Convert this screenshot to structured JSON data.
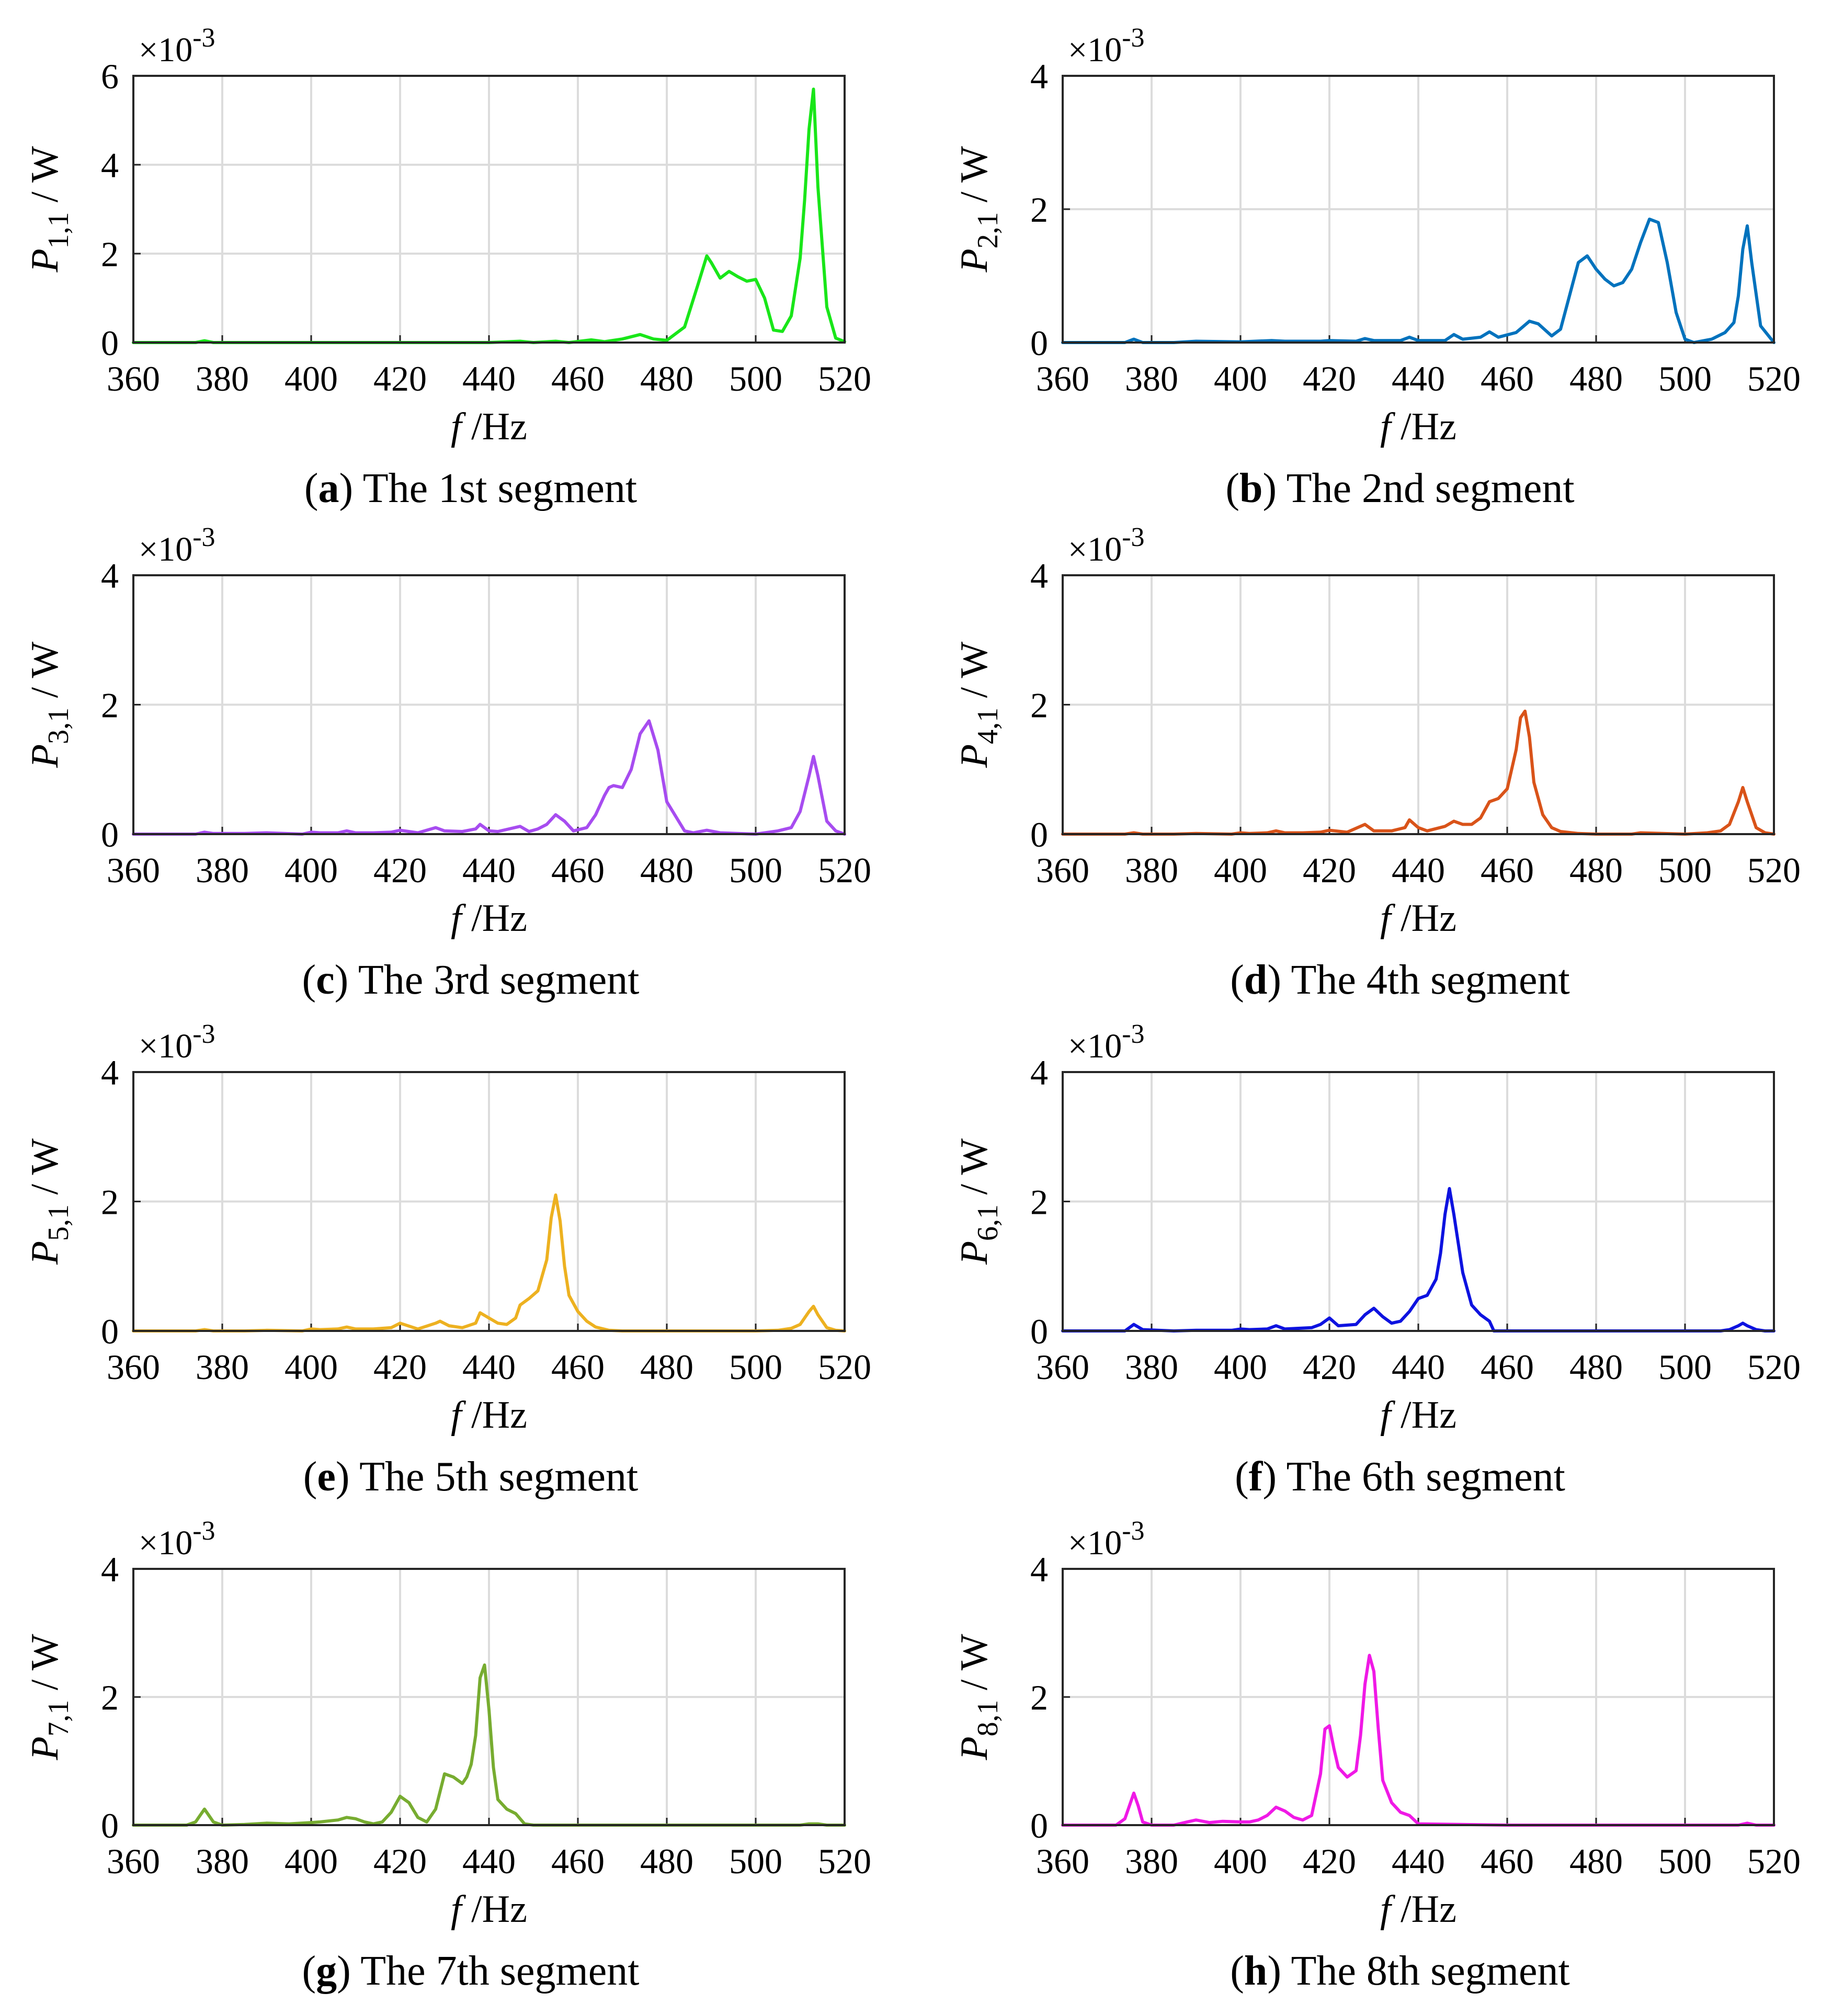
{
  "figure": {
    "common": {
      "xlabel_var": "f",
      "xlabel_unit": " /Hz",
      "ylabel_var": "P",
      "ylabel_unit": " / W",
      "multiplier_base": "×10",
      "multiplier_exp": "-3",
      "x_ticks": [
        "360",
        "380",
        "400",
        "420",
        "440",
        "460",
        "480",
        "500",
        "520"
      ]
    }
  },
  "chart_data": [
    {
      "type": "line",
      "letter": "a",
      "caption": " The 1st segment",
      "ysub": "1,1",
      "color": "#19e619",
      "xlim": [
        360,
        520
      ],
      "ylim": [
        0,
        6
      ],
      "y_ticks": [
        "0",
        "2",
        "4",
        "6"
      ],
      "series": [
        {
          "name": "P1,1",
          "x": [
            360,
            374,
            376,
            378,
            390,
            400,
            420,
            440,
            447,
            450,
            455,
            458,
            463,
            466,
            470,
            474,
            477,
            480,
            484,
            487,
            489,
            490,
            492,
            494,
            496,
            498,
            500,
            502,
            504,
            506,
            508,
            510,
            511,
            512,
            513,
            514,
            516,
            518,
            520
          ],
          "y": [
            0,
            0,
            0.04,
            0,
            0,
            0,
            0,
            0,
            0.03,
            0,
            0.03,
            0,
            0.06,
            0.02,
            0.08,
            0.18,
            0.08,
            0.05,
            0.35,
            1.3,
            1.95,
            1.8,
            1.45,
            1.6,
            1.48,
            1.38,
            1.42,
            1.0,
            0.28,
            0.25,
            0.6,
            1.9,
            3.2,
            4.8,
            5.7,
            3.5,
            0.8,
            0.1,
            0.02
          ]
        }
      ]
    },
    {
      "type": "line",
      "letter": "b",
      "caption": " The 2nd segment",
      "ysub": "2,1",
      "color": "#0072bd",
      "xlim": [
        360,
        520
      ],
      "ylim": [
        0,
        4
      ],
      "y_ticks": [
        "0",
        "2",
        "4"
      ],
      "series": [
        {
          "name": "P2,1",
          "x": [
            360,
            374,
            376,
            378,
            385,
            390,
            400,
            407,
            410,
            418,
            420,
            426,
            428,
            430,
            436,
            438,
            440,
            446,
            448,
            450,
            454,
            456,
            458,
            462,
            465,
            467,
            470,
            472,
            474,
            476,
            478,
            480,
            482,
            484,
            486,
            488,
            490,
            492,
            494,
            496,
            498,
            500,
            502,
            506,
            509,
            511,
            512,
            513,
            514,
            515,
            517,
            520
          ],
          "y": [
            0,
            0,
            0.05,
            0,
            0,
            0.02,
            0.01,
            0.03,
            0.02,
            0.02,
            0.03,
            0.02,
            0.06,
            0.03,
            0.03,
            0.08,
            0.03,
            0.03,
            0.12,
            0.05,
            0.08,
            0.16,
            0.08,
            0.15,
            0.32,
            0.28,
            0.1,
            0.2,
            0.7,
            1.2,
            1.3,
            1.1,
            0.95,
            0.85,
            0.9,
            1.1,
            1.5,
            1.85,
            1.8,
            1.2,
            0.45,
            0.05,
            0,
            0.05,
            0.15,
            0.3,
            0.7,
            1.4,
            1.75,
            1.2,
            0.25,
            0
          ]
        }
      ]
    },
    {
      "type": "line",
      "letter": "c",
      "caption": " The 3rd segment",
      "ysub": "3,1",
      "color": "#a74cf0",
      "xlim": [
        360,
        520
      ],
      "ylim": [
        0,
        4
      ],
      "y_ticks": [
        "0",
        "2",
        "4"
      ],
      "series": [
        {
          "name": "P3,1",
          "x": [
            360,
            374,
            376,
            378,
            385,
            390,
            398,
            400,
            402,
            406,
            408,
            410,
            414,
            418,
            420,
            424,
            428,
            430,
            434,
            437,
            438,
            440,
            442,
            447,
            449,
            451,
            453,
            455,
            457,
            459,
            462,
            464,
            466,
            467,
            468,
            470,
            472,
            474,
            476,
            478,
            480,
            484,
            486,
            489,
            492,
            500,
            505,
            508,
            510,
            512,
            513,
            514,
            516,
            518,
            520
          ],
          "y": [
            0,
            0,
            0.03,
            0.01,
            0.01,
            0.02,
            0,
            0.03,
            0.02,
            0.02,
            0.05,
            0.02,
            0.02,
            0.03,
            0.06,
            0.02,
            0.1,
            0.05,
            0.04,
            0.08,
            0.15,
            0.05,
            0.04,
            0.12,
            0.04,
            0.08,
            0.15,
            0.3,
            0.2,
            0.05,
            0.1,
            0.3,
            0.6,
            0.72,
            0.75,
            0.72,
            1.0,
            1.55,
            1.75,
            1.3,
            0.5,
            0.05,
            0.02,
            0.06,
            0.02,
            0,
            0.05,
            0.1,
            0.35,
            0.9,
            1.2,
            0.9,
            0.2,
            0.05,
            0
          ]
        }
      ]
    },
    {
      "type": "line",
      "letter": "d",
      "caption": " The 4th segment",
      "ysub": "4,1",
      "color": "#d95319",
      "xlim": [
        360,
        520
      ],
      "ylim": [
        0,
        4
      ],
      "y_ticks": [
        "0",
        "2",
        "4"
      ],
      "series": [
        {
          "name": "P4,1",
          "x": [
            360,
            374,
            376,
            378,
            385,
            390,
            398,
            400,
            402,
            406,
            408,
            410,
            414,
            418,
            420,
            424,
            428,
            430,
            434,
            437,
            438,
            440,
            442,
            446,
            448,
            450,
            452,
            454,
            456,
            458,
            460,
            462,
            463,
            464,
            465,
            466,
            468,
            470,
            472,
            476,
            480,
            488,
            490,
            500,
            505,
            508,
            510,
            512,
            513,
            514,
            516,
            518,
            520
          ],
          "y": [
            0,
            0,
            0.02,
            0,
            0,
            0.01,
            0,
            0.02,
            0.01,
            0.02,
            0.05,
            0.02,
            0.02,
            0.03,
            0.06,
            0.03,
            0.15,
            0.05,
            0.05,
            0.1,
            0.22,
            0.1,
            0.05,
            0.12,
            0.2,
            0.15,
            0.15,
            0.25,
            0.5,
            0.55,
            0.7,
            1.3,
            1.8,
            1.9,
            1.5,
            0.8,
            0.3,
            0.1,
            0.04,
            0.01,
            0,
            0,
            0.02,
            0,
            0.02,
            0.05,
            0.15,
            0.5,
            0.72,
            0.5,
            0.1,
            0.02,
            0
          ]
        }
      ]
    },
    {
      "type": "line",
      "letter": "e",
      "caption": " The 5th segment",
      "ysub": "5,1",
      "color": "#edb120",
      "xlim": [
        360,
        520
      ],
      "ylim": [
        0,
        4
      ],
      "y_ticks": [
        "0",
        "2",
        "4"
      ],
      "series": [
        {
          "name": "P5,1",
          "x": [
            360,
            374,
            376,
            378,
            385,
            390,
            398,
            400,
            402,
            406,
            408,
            410,
            414,
            418,
            420,
            424,
            428,
            429,
            431,
            434,
            437,
            438,
            440,
            442,
            444,
            446,
            447,
            449,
            451,
            453,
            454,
            455,
            456,
            457,
            458,
            460,
            462,
            464,
            467,
            470,
            480,
            490,
            500,
            505,
            508,
            510,
            512,
            513,
            514,
            516,
            518,
            520
          ],
          "y": [
            0,
            0,
            0.02,
            0,
            0,
            0.01,
            0,
            0.03,
            0.02,
            0.03,
            0.06,
            0.03,
            0.03,
            0.05,
            0.12,
            0.03,
            0.12,
            0.15,
            0.08,
            0.05,
            0.12,
            0.28,
            0.2,
            0.12,
            0.1,
            0.2,
            0.4,
            0.5,
            0.62,
            1.1,
            1.75,
            2.1,
            1.7,
            1.0,
            0.55,
            0.3,
            0.15,
            0.06,
            0.01,
            0,
            0,
            0,
            0,
            0.01,
            0.04,
            0.1,
            0.3,
            0.38,
            0.25,
            0.05,
            0.01,
            0
          ]
        }
      ]
    },
    {
      "type": "line",
      "letter": "f",
      "caption": " The 6th segment",
      "ysub": "6,1",
      "color": "#0d12e0",
      "xlim": [
        360,
        520
      ],
      "ylim": [
        0,
        4
      ],
      "y_ticks": [
        "0",
        "2",
        "4"
      ],
      "series": [
        {
          "name": "P6,1",
          "x": [
            360,
            374,
            376,
            378,
            385,
            390,
            398,
            400,
            402,
            406,
            408,
            410,
            416,
            418,
            420,
            422,
            426,
            428,
            430,
            432,
            434,
            436,
            438,
            440,
            442,
            444,
            445,
            446,
            447,
            448,
            450,
            452,
            454,
            456,
            457,
            460,
            480,
            500,
            508,
            510,
            512,
            513,
            514,
            516,
            518,
            520
          ],
          "y": [
            0,
            0,
            0.1,
            0.02,
            0,
            0.01,
            0.01,
            0.03,
            0.02,
            0.03,
            0.08,
            0.03,
            0.05,
            0.1,
            0.2,
            0.08,
            0.1,
            0.25,
            0.35,
            0.22,
            0.12,
            0.15,
            0.3,
            0.5,
            0.55,
            0.8,
            1.2,
            1.8,
            2.2,
            1.8,
            0.9,
            0.4,
            0.25,
            0.15,
            0,
            0,
            0,
            0,
            0,
            0.02,
            0.08,
            0.12,
            0.08,
            0.02,
            0,
            0
          ]
        }
      ]
    },
    {
      "type": "line",
      "letter": "g",
      "caption": " The 7th segment",
      "ysub": "7,1",
      "color": "#77ac30",
      "xlim": [
        360,
        520
      ],
      "ylim": [
        0,
        4
      ],
      "y_ticks": [
        "0",
        "2",
        "4"
      ],
      "series": [
        {
          "name": "P7,1",
          "x": [
            360,
            372,
            374,
            375,
            376,
            377,
            378,
            380,
            385,
            390,
            395,
            400,
            402,
            406,
            408,
            410,
            412,
            414,
            416,
            418,
            420,
            422,
            424,
            426,
            428,
            430,
            432,
            434,
            435,
            436,
            437,
            438,
            439,
            440,
            441,
            442,
            444,
            446,
            448,
            450,
            460,
            480,
            500,
            510,
            512,
            514,
            516,
            518,
            520
          ],
          "y": [
            0,
            0,
            0.05,
            0.15,
            0.25,
            0.15,
            0.05,
            0,
            0.01,
            0.03,
            0.02,
            0.04,
            0.05,
            0.08,
            0.12,
            0.1,
            0.05,
            0.02,
            0.05,
            0.2,
            0.45,
            0.35,
            0.12,
            0.05,
            0.25,
            0.8,
            0.75,
            0.65,
            0.75,
            0.95,
            1.4,
            2.3,
            2.5,
            1.8,
            0.9,
            0.4,
            0.25,
            0.18,
            0.02,
            0,
            0,
            0,
            0,
            0,
            0.02,
            0.02,
            0,
            0,
            0
          ]
        }
      ]
    },
    {
      "type": "line",
      "letter": "h",
      "caption": " The 8th segment",
      "ysub": "8,1",
      "color": "#f019e6",
      "xlim": [
        360,
        520
      ],
      "ylim": [
        0,
        4
      ],
      "y_ticks": [
        "0",
        "2",
        "4"
      ],
      "series": [
        {
          "name": "P8,1",
          "x": [
            360,
            372,
            374,
            375,
            376,
            377,
            378,
            380,
            385,
            388,
            390,
            393,
            396,
            400,
            402,
            404,
            406,
            408,
            410,
            412,
            414,
            416,
            418,
            419,
            420,
            421,
            422,
            424,
            426,
            427,
            428,
            429,
            430,
            431,
            432,
            434,
            436,
            438,
            440,
            460,
            480,
            500,
            510,
            512,
            514,
            516,
            520
          ],
          "y": [
            0,
            0,
            0.1,
            0.3,
            0.5,
            0.3,
            0.05,
            0,
            0,
            0.05,
            0.08,
            0.04,
            0.06,
            0.05,
            0.05,
            0.08,
            0.15,
            0.28,
            0.22,
            0.12,
            0.08,
            0.15,
            0.8,
            1.5,
            1.55,
            1.2,
            0.9,
            0.75,
            0.85,
            1.4,
            2.2,
            2.65,
            2.4,
            1.5,
            0.7,
            0.35,
            0.2,
            0.15,
            0.02,
            0,
            0,
            0,
            0,
            0,
            0.03,
            0,
            0
          ]
        }
      ]
    }
  ]
}
